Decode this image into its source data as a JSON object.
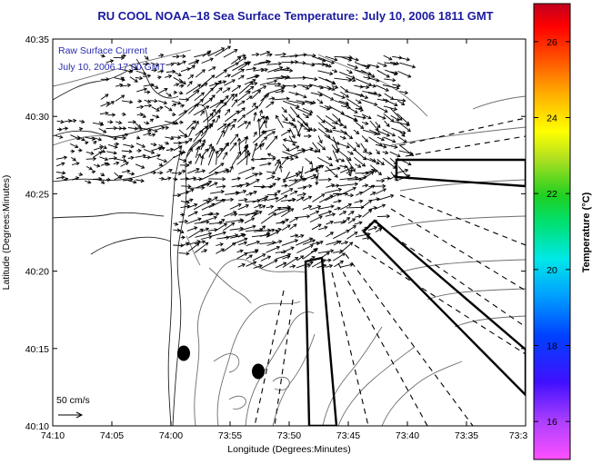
{
  "title": "RU COOL  NOAA–18  Sea Surface Temperature:  July 10, 2006 1811 GMT",
  "legend": {
    "line1": "Raw Surface Current",
    "line2": "July 10, 2006 17:00 GMT"
  },
  "scale_label": "50 cm/s",
  "axes": {
    "xlabel": "Longitude (Degrees:Minutes)",
    "ylabel": "Latitude (Degrees:Minutes)",
    "x_ticks": [
      "74:10",
      "74:05",
      "74:00",
      "73:55",
      "73:50",
      "73:45",
      "73:40",
      "73:35",
      "73:3"
    ],
    "y_ticks": [
      "40:35",
      "40:30",
      "40:25",
      "40:20",
      "40:15",
      "40:10"
    ]
  },
  "colorbar": {
    "label": "Temperature (°C)",
    "ticks": [
      "26",
      "24",
      "22",
      "20",
      "18",
      "16"
    ],
    "range": [
      15,
      27
    ]
  },
  "colors": {
    "title": "#1a1aa0",
    "legend_text": "#2a2ab0",
    "arrows": "#000000",
    "bathymetry": "#6e6e6e"
  },
  "icons": [
    "dot-marker",
    "scale-arrow-icon"
  ]
}
